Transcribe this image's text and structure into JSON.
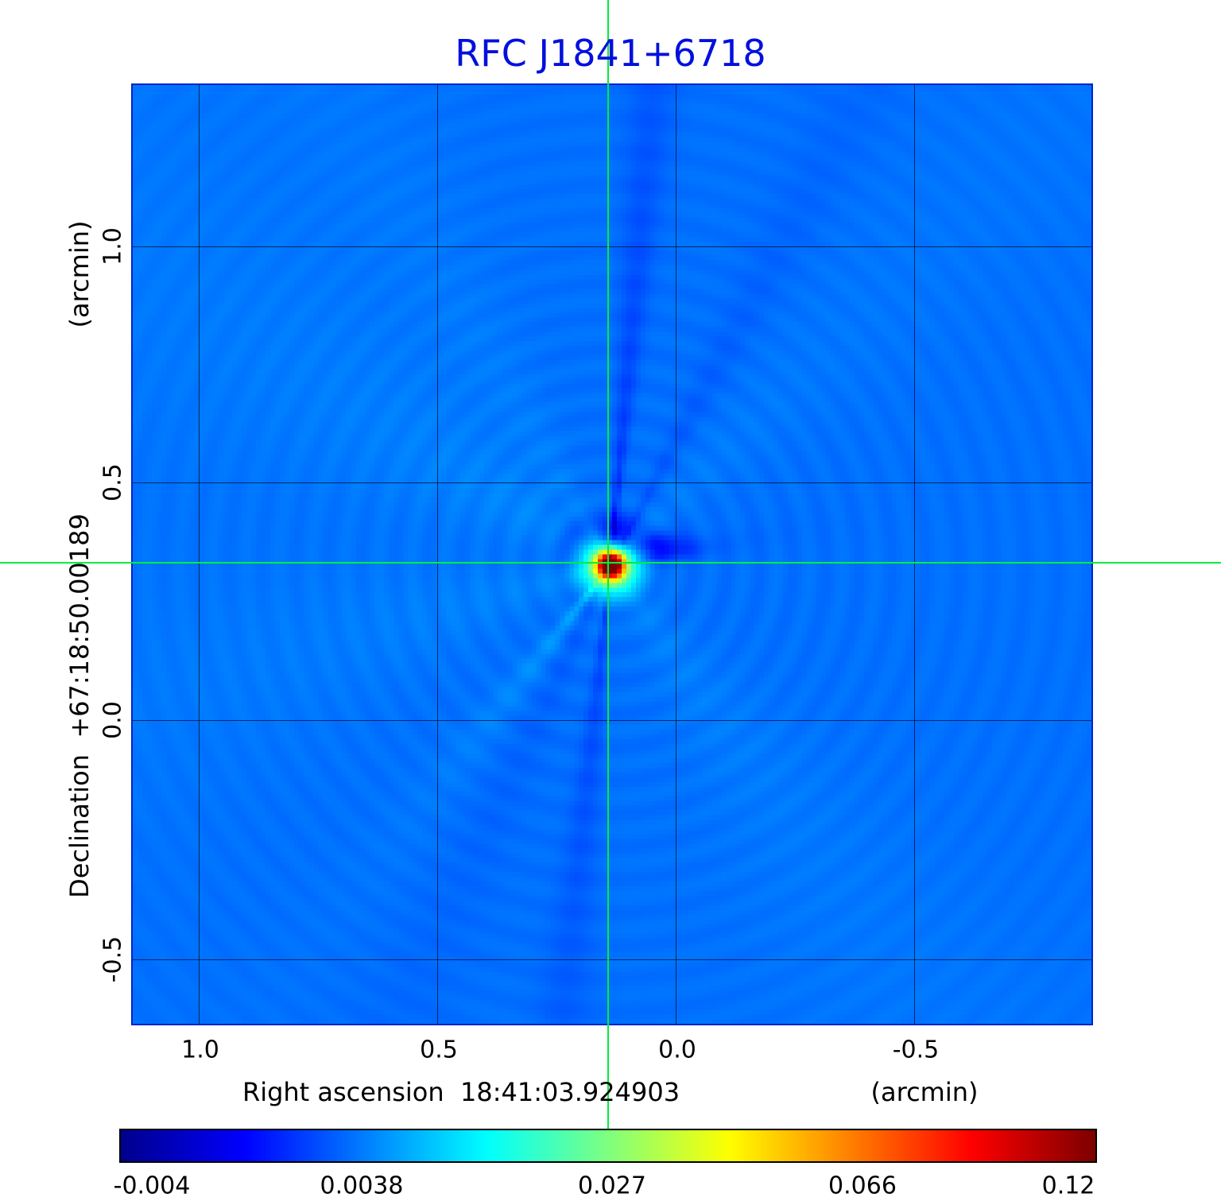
{
  "title": "RFC J1841+6718",
  "axes": {
    "x": {
      "label": "Right ascension  18:41:03.924903",
      "unit": "(arcmin)",
      "ticks": [
        "1.0",
        "0.5",
        "0.0",
        "-0.5"
      ]
    },
    "y": {
      "label": "Declination  +67:18:50.00189",
      "unit": "(arcmin)",
      "ticks": [
        "1.0",
        "0.5",
        "0.0",
        "-0.5"
      ]
    }
  },
  "colorbar": {
    "ticks": [
      "-0.004",
      "0.0038",
      "0.027",
      "0.066",
      "0.12"
    ]
  },
  "colors": {
    "title": "#0010dd",
    "frame": "#0022cc",
    "crosshair": "#00ef3c",
    "grid": "#0a0a28",
    "colorbar_border": "#000000",
    "background_sky": "#1477ff"
  },
  "chart_data": {
    "type": "heatmap",
    "title": "RFC J1841+6718",
    "xlabel": "Right ascension 18:41:03.924903 (arcmin)",
    "ylabel": "Declination +67:18:50.00189 (arcmin)",
    "x_ticks_arcmin": [
      1.0,
      0.5,
      0.0,
      -0.5
    ],
    "y_ticks_arcmin": [
      1.0,
      0.5,
      0.0,
      -0.5
    ],
    "x_range_arcmin": [
      1.14,
      -0.88
    ],
    "y_range_arcmin": [
      -0.64,
      1.34
    ],
    "grid": true,
    "colormap": "jet",
    "intensity_scale": "asinh",
    "colorbar_ticks": [
      -0.004,
      0.0038,
      0.027,
      0.066,
      0.12
    ],
    "colorbar_min": -0.004,
    "colorbar_max": 0.12,
    "peak_value": 0.12,
    "source": {
      "ra": "18:41:03.924903",
      "dec": "+67:18:50.00189",
      "offset_arcmin_x": 0.14,
      "offset_arcmin_y": 0.33,
      "marker": "green-crosshair"
    }
  }
}
